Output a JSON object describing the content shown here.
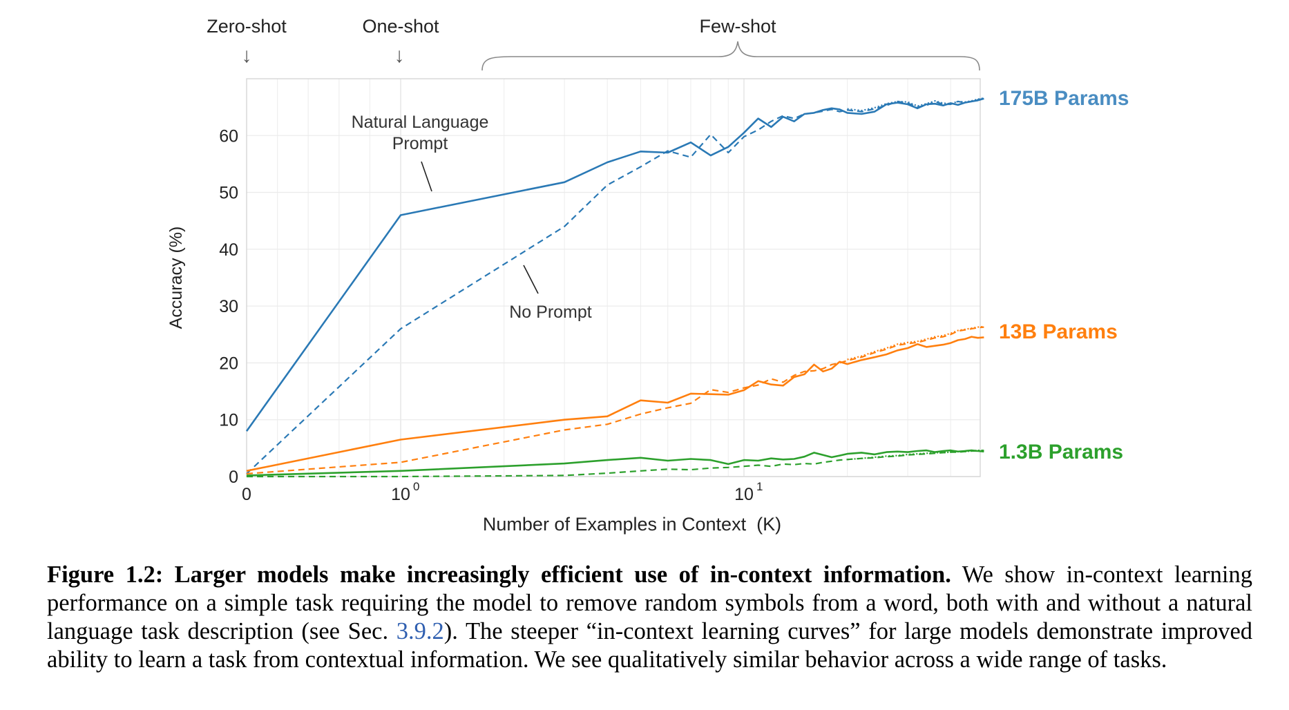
{
  "colors": {
    "175B": "#2a79b5",
    "13B": "#ff7f0e",
    "1.3B": "#2ca02c",
    "label_175B": "#4a8dc2",
    "caption_link": "#2f5fb0"
  },
  "chart_data": {
    "type": "line",
    "xlabel": "Number of Examples in Context  (K)",
    "ylabel": "Accuracy (%)",
    "xscale": "symlog",
    "ylim": [
      0,
      70
    ],
    "xticks": [
      {
        "value": 0,
        "label": "0"
      },
      {
        "value": 1,
        "label": "10",
        "exp": "0"
      },
      {
        "value": 10,
        "label": "10",
        "exp": "1"
      }
    ],
    "yticks": [
      0,
      10,
      20,
      30,
      40,
      50,
      60
    ],
    "grid": true,
    "regions": [
      {
        "name": "zero-shot",
        "label": "Zero-shot",
        "x": 0,
        "arrow": "↓"
      },
      {
        "name": "one-shot",
        "label": "One-shot",
        "x": 1,
        "arrow": "↓"
      },
      {
        "name": "few-shot",
        "label": "Few-shot",
        "x_from": 1.5,
        "x_to": 50
      }
    ],
    "annotations": [
      {
        "name": "natural-language-prompt",
        "lines": [
          "Natural Language",
          "Prompt"
        ]
      },
      {
        "name": "no-prompt",
        "lines": [
          "No Prompt"
        ]
      }
    ],
    "series": [
      {
        "name": "175B Params",
        "group": "175B",
        "style": "solid",
        "x": [
          0,
          1,
          3,
          4,
          5,
          6,
          7,
          8,
          9,
          10,
          11,
          12,
          13,
          14,
          15,
          16,
          17,
          18,
          19,
          20,
          22,
          24,
          26,
          28,
          30,
          32,
          34,
          36,
          38,
          40,
          42,
          44,
          46,
          48,
          50
        ],
        "y": [
          8,
          46,
          51.8,
          55.3,
          57.2,
          57,
          58.8,
          56.5,
          58,
          60.5,
          63,
          61.5,
          63.3,
          62.5,
          63.8,
          64,
          64.5,
          64.8,
          64.6,
          64,
          63.8,
          64.2,
          65.5,
          65.8,
          65.5,
          64.8,
          65.5,
          65.6,
          65.3,
          65.7,
          65.4,
          65.8,
          66,
          66.2,
          66.5
        ]
      },
      {
        "name": "",
        "group": "175B",
        "style": "dashed",
        "x": [
          0,
          1,
          3,
          4,
          5,
          6,
          7,
          8,
          9,
          10,
          11,
          12,
          13,
          14,
          15,
          16,
          17,
          18,
          19,
          20,
          22,
          24,
          26,
          28,
          30,
          32,
          34,
          36,
          38,
          40,
          42,
          44,
          46,
          48,
          50
        ],
        "y": [
          0.5,
          26,
          44,
          51.3,
          54.5,
          57.3,
          56.2,
          60.2,
          57,
          59.8,
          61,
          62.5,
          63.5,
          63,
          63.8,
          64,
          64.3,
          64.6,
          64.2,
          64.5,
          64.2,
          64.7,
          65.3,
          66,
          65.7,
          65,
          65.3,
          66,
          65.5,
          65.5,
          66,
          65.8,
          66,
          66.3,
          66.5
        ]
      },
      {
        "name": "",
        "group": "175B",
        "style": "dotted",
        "x": [
          20,
          22,
          24,
          26,
          28,
          30,
          32,
          34,
          36,
          38,
          40,
          42,
          44,
          46,
          48,
          50
        ],
        "y": [
          64.7,
          64.4,
          64.9,
          65.6,
          66,
          65.9,
          65.2,
          65.6,
          66.1,
          65.7,
          65.6,
          66,
          65.9,
          66.1,
          66.4,
          66.6
        ]
      },
      {
        "name": "13B Params",
        "group": "13B",
        "style": "solid",
        "x": [
          0,
          1,
          3,
          4,
          5,
          6,
          7,
          8,
          9,
          10,
          11,
          12,
          13,
          14,
          15,
          16,
          17,
          18,
          19,
          20,
          22,
          24,
          26,
          28,
          30,
          32,
          34,
          36,
          38,
          40,
          42,
          44,
          46,
          48,
          50
        ],
        "y": [
          1,
          6.5,
          10,
          10.6,
          13.4,
          13,
          14.6,
          14.5,
          14.4,
          15.2,
          16.8,
          16.2,
          16,
          17.5,
          18,
          19.7,
          18.5,
          19,
          20.2,
          19.8,
          20.5,
          21,
          21.5,
          22.2,
          22.6,
          23.3,
          22.8,
          23,
          23.2,
          23.5,
          24,
          24.2,
          24.6,
          24.4,
          24.5
        ]
      },
      {
        "name": "",
        "group": "13B",
        "style": "dashed",
        "x": [
          0,
          1,
          3,
          4,
          5,
          6,
          7,
          8,
          9,
          10,
          11,
          12,
          13,
          14,
          15,
          16,
          17,
          18,
          19,
          20,
          22,
          24,
          26,
          28,
          30,
          32,
          34,
          36,
          38,
          40,
          42,
          44,
          46,
          48,
          50
        ],
        "y": [
          0.5,
          2.5,
          8.2,
          9.2,
          11,
          12.1,
          12.9,
          15.3,
          14.8,
          15.6,
          16.1,
          17.2,
          16.6,
          17.8,
          18.5,
          18.6,
          19,
          19.7,
          20,
          20.4,
          21,
          21.8,
          22.4,
          23.1,
          23.4,
          23.6,
          24,
          24.4,
          24.6,
          25,
          25.6,
          25.8,
          26,
          26.2,
          26.3
        ]
      },
      {
        "name": "",
        "group": "13B",
        "style": "dotted",
        "x": [
          20,
          22,
          24,
          26,
          28,
          30,
          32,
          34,
          36,
          38,
          40,
          42,
          44,
          46,
          48,
          50
        ],
        "y": [
          20.6,
          21.2,
          22,
          22.6,
          23.3,
          23.6,
          23.8,
          24.2,
          24.6,
          24.8,
          25.2,
          25.7,
          25.9,
          26.1,
          26.3,
          26.4
        ]
      },
      {
        "name": "1.3B Params",
        "group": "1.3B",
        "style": "solid",
        "x": [
          0,
          1,
          3,
          4,
          5,
          6,
          7,
          8,
          9,
          10,
          11,
          12,
          13,
          14,
          15,
          16,
          17,
          18,
          19,
          20,
          22,
          24,
          26,
          28,
          30,
          32,
          34,
          36,
          38,
          40,
          42,
          44,
          46,
          48,
          50
        ],
        "y": [
          0.2,
          1,
          2.3,
          2.9,
          3.3,
          2.8,
          3.1,
          2.9,
          2.2,
          2.9,
          2.8,
          3.2,
          3,
          3.1,
          3.5,
          4.2,
          3.8,
          3.4,
          3.7,
          4,
          4.2,
          3.9,
          4.3,
          4.4,
          4.3,
          4.5,
          4.6,
          4.3,
          4.5,
          4.6,
          4.4,
          4.5,
          4.6,
          4.5,
          4.4
        ]
      },
      {
        "name": "",
        "group": "1.3B",
        "style": "dashed",
        "x": [
          0,
          1,
          3,
          4,
          5,
          6,
          7,
          8,
          9,
          10,
          11,
          12,
          13,
          14,
          15,
          16,
          17,
          18,
          19,
          20,
          22,
          24,
          26,
          28,
          30,
          32,
          34,
          36,
          38,
          40,
          42,
          44,
          46,
          48,
          50
        ],
        "y": [
          0,
          0,
          0.2,
          0.6,
          1,
          1.3,
          1.2,
          1.5,
          1.6,
          1.8,
          2,
          1.8,
          2.2,
          2.1,
          2.3,
          2.2,
          2.5,
          2.7,
          2.9,
          3,
          3.2,
          3.3,
          3.5,
          3.6,
          3.8,
          3.9,
          4,
          4.1,
          4.2,
          4.3,
          4.3,
          4.4,
          4.5,
          4.5,
          4.6
        ]
      },
      {
        "name": "",
        "group": "1.3B",
        "style": "dotted",
        "x": [
          20,
          22,
          24,
          26,
          28,
          30,
          32,
          34,
          36,
          38,
          40,
          42,
          44,
          46,
          48,
          50
        ],
        "y": [
          3,
          3.2,
          3.4,
          3.6,
          3.7,
          3.9,
          4,
          4.1,
          4.2,
          4.2,
          4.3,
          4.4,
          4.4,
          4.5,
          4.6,
          4.6
        ]
      }
    ]
  },
  "caption": {
    "title": "Figure 1.2: Larger models make increasingly efficient use of in-context information.",
    "part1": "We show in-context learning performance on a simple task requiring the model to remove random symbols from a word, both with and without a natural language task description (see Sec.",
    "ref": "3.9.2",
    "part2": "). The steeper “in-context learning curves” for large models demonstrate improved ability to learn a task from contextual information. We see qualitatively similar behavior across a wide range of tasks."
  }
}
